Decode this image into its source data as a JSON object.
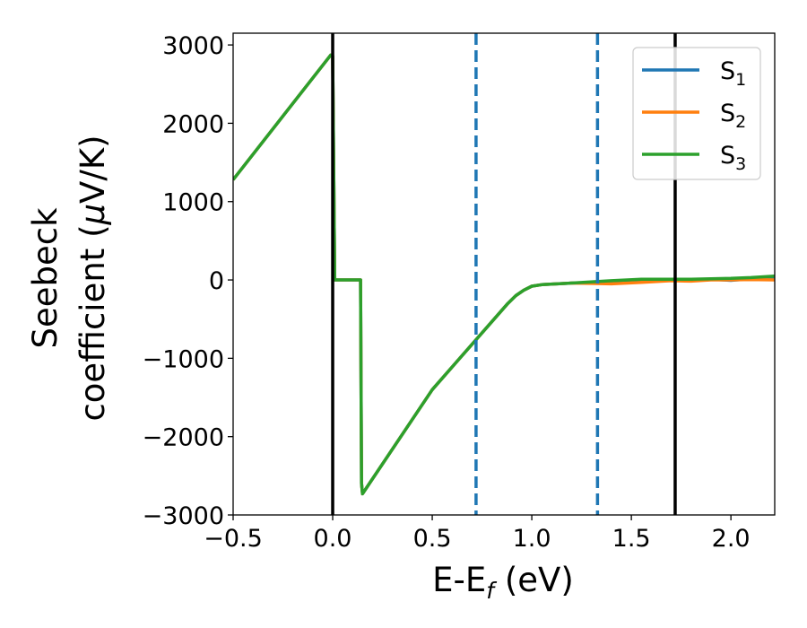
{
  "chart_data": {
    "type": "line",
    "xlabel": "E-E",
    "xlabel_sub": "f",
    "xlabel_unit": " (eV)",
    "ylabel_line1": "Seebeck",
    "ylabel_line2": "coefficient  (",
    "ylabel_mu": "μ",
    "ylabel_unit": "V/K)",
    "xlim": [
      -0.5,
      2.22
    ],
    "ylim": [
      -3000,
      3150
    ],
    "xticks": [
      -0.5,
      0.0,
      0.5,
      1.0,
      1.5,
      2.0
    ],
    "xtick_labels": [
      "−0.5",
      "0.0",
      "0.5",
      "1.0",
      "1.5",
      "2.0"
    ],
    "yticks": [
      -3000,
      -2000,
      -1000,
      0,
      1000,
      2000,
      3000
    ],
    "ytick_labels": [
      "−3000",
      "−2000",
      "−1000",
      "0",
      "1000",
      "2000",
      "3000"
    ],
    "grid": false,
    "legend_position": "top-right",
    "vlines": [
      {
        "x": 0.0,
        "style": "solid",
        "color": "#000000"
      },
      {
        "x": 1.72,
        "style": "solid",
        "color": "#000000"
      },
      {
        "x": 0.72,
        "style": "dashed",
        "color": "#1f77b4"
      },
      {
        "x": 1.33,
        "style": "dashed",
        "color": "#1f77b4"
      }
    ],
    "series": [
      {
        "name": "S",
        "sub": "1",
        "color": "#1f77b4",
        "x": [
          -0.5,
          -0.01,
          0.0,
          0.01,
          0.14,
          0.145,
          0.15,
          0.5,
          0.88,
          0.92,
          0.96,
          1.0,
          1.05,
          1.2,
          1.4,
          1.55,
          1.7,
          1.8,
          1.9,
          2.0,
          2.1,
          2.22
        ],
        "y": [
          1280,
          2870,
          2860,
          0,
          0,
          -2600,
          -2730,
          -1400,
          -300,
          -200,
          -130,
          -80,
          -60,
          -40,
          -30,
          -20,
          0,
          -10,
          10,
          -5,
          15,
          20
        ]
      },
      {
        "name": "S",
        "sub": "2",
        "color": "#ff7f0e",
        "x": [
          -0.5,
          -0.01,
          0.0,
          0.01,
          0.14,
          0.145,
          0.15,
          0.5,
          0.88,
          0.92,
          0.96,
          1.0,
          1.05,
          1.2,
          1.4,
          1.55,
          1.7,
          1.8,
          1.9,
          2.0,
          2.1,
          2.22
        ],
        "y": [
          1280,
          2870,
          2860,
          0,
          0,
          -2600,
          -2730,
          -1400,
          -300,
          -200,
          -130,
          -80,
          -60,
          -40,
          -50,
          -30,
          -10,
          -15,
          0,
          0,
          5,
          0
        ]
      },
      {
        "name": "S",
        "sub": "3",
        "color": "#2ca02c",
        "x": [
          -0.5,
          -0.01,
          0.0,
          0.01,
          0.14,
          0.145,
          0.15,
          0.5,
          0.88,
          0.92,
          0.96,
          1.0,
          1.05,
          1.2,
          1.4,
          1.55,
          1.7,
          1.8,
          1.9,
          2.0,
          2.1,
          2.22
        ],
        "y": [
          1280,
          2870,
          2860,
          0,
          0,
          -2600,
          -2730,
          -1400,
          -300,
          -200,
          -130,
          -80,
          -60,
          -40,
          -10,
          10,
          10,
          10,
          15,
          20,
          30,
          50
        ]
      }
    ]
  }
}
